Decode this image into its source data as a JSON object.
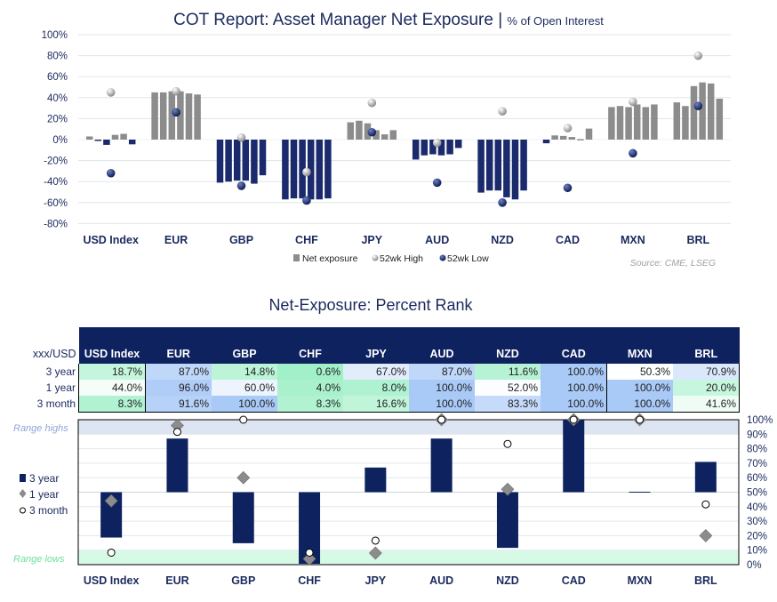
{
  "chart_data": [
    {
      "type": "bar",
      "title": "COT Report: Asset Manager Net Exposure",
      "subtitle": "% of Open Interest",
      "categories": [
        "USD Index",
        "EUR",
        "GBP",
        "CHF",
        "JPY",
        "AUD",
        "NZD",
        "CAD",
        "MXN",
        "BRL"
      ],
      "ylim": [
        -80,
        100
      ],
      "yticks": [
        "100%",
        "80%",
        "60%",
        "40%",
        "20%",
        "0%",
        "-20%",
        "-40%",
        "-60%",
        "-80%"
      ],
      "grid": true,
      "legend_position": "bottom",
      "series": [
        {
          "name": "Net exposure",
          "values": [
            [
              3,
              -0.5,
              -5,
              4.5,
              5.5,
              -4.5
            ],
            [
              45,
              45,
              46,
              46,
              44,
              43
            ],
            [
              -41,
              -40,
              -39,
              -39,
              -42,
              -34
            ],
            [
              -57,
              -56,
              -56,
              -57,
              -57,
              -56
            ],
            [
              16.5,
              18,
              15.5,
              9,
              5,
              9
            ],
            [
              -19,
              -15,
              -14,
              -15,
              -14,
              -8
            ],
            [
              -50.5,
              -48.5,
              -48.5,
              -55,
              -57,
              -48.5
            ],
            [
              -3.5,
              4,
              3.5,
              2.5,
              0.5,
              10.5
            ],
            [
              31,
              32,
              31,
              33.5,
              31,
              33.5
            ],
            [
              35.5,
              32,
              51,
              54.5,
              53.5,
              39
            ]
          ]
        },
        {
          "name": "52wk High",
          "values": [
            45,
            46,
            2,
            -31,
            35,
            -3,
            27,
            11,
            36,
            80
          ]
        },
        {
          "name": "52wk Low",
          "values": [
            -32,
            26,
            -44,
            -58,
            7,
            -41,
            -60,
            -46,
            -13,
            32
          ]
        }
      ],
      "colors": {
        "positive": "#8c8c8c",
        "negative": "#1a2a6c",
        "high": "#b0b0b0",
        "low": "#1b2a6e"
      },
      "source": "Source: CME, LSEG"
    },
    {
      "type": "bar",
      "title": "Net-Exposure: Percent Rank",
      "categories": [
        "USD Index",
        "EUR",
        "GBP",
        "CHF",
        "JPY",
        "AUD",
        "NZD",
        "CAD",
        "MXN",
        "BRL"
      ],
      "ylim": [
        0,
        100
      ],
      "yticks": [
        "100%",
        "90%",
        "80%",
        "70%",
        "60%",
        "50%",
        "40%",
        "30%",
        "20%",
        "10%",
        "0%"
      ],
      "baseline": 50,
      "grid": true,
      "legend_position": "left",
      "series": [
        {
          "name": "3 year",
          "values": [
            18.7,
            87.0,
            14.8,
            0.6,
            67.0,
            87.0,
            11.6,
            100.0,
            50.3,
            70.9
          ]
        },
        {
          "name": "1 year",
          "values": [
            44.0,
            96.0,
            60.0,
            4.0,
            8.0,
            100.0,
            52.0,
            100.0,
            100.0,
            20.0
          ]
        },
        {
          "name": "3 month",
          "values": [
            8.3,
            91.6,
            100.0,
            8.3,
            16.6,
            100.0,
            83.3,
            100.0,
            100.0,
            41.6
          ]
        }
      ],
      "annotations": [
        {
          "text": "Range highs",
          "range": [
            90,
            100
          ],
          "color": "#dde4f2"
        },
        {
          "text": "Range lows",
          "range": [
            0,
            10
          ],
          "color": "#d6fae6"
        }
      ],
      "colors": {
        "bar": "#0e2260",
        "diamond": "#8c8c8c",
        "circle": "#ffffff"
      }
    }
  ],
  "table": {
    "corner": "xxx/USD",
    "columns": [
      "USD Index",
      "EUR",
      "GBP",
      "CHF",
      "JPY",
      "AUD",
      "NZD",
      "CAD",
      "MXN",
      "BRL"
    ],
    "rows": [
      {
        "label": "3 year",
        "values": [
          "18.7%",
          "87.0%",
          "14.8%",
          "0.6%",
          "67.0%",
          "87.0%",
          "11.6%",
          "100.0%",
          "50.3%",
          "70.9%"
        ]
      },
      {
        "label": "1 year",
        "values": [
          "44.0%",
          "96.0%",
          "60.0%",
          "4.0%",
          "8.0%",
          "100.0%",
          "52.0%",
          "100.0%",
          "100.0%",
          "20.0%"
        ]
      },
      {
        "label": "3 month",
        "values": [
          "8.3%",
          "91.6%",
          "100.0%",
          "8.3%",
          "16.6%",
          "100.0%",
          "83.3%",
          "100.0%",
          "100.0%",
          "41.6%"
        ]
      }
    ],
    "scale_colors": {
      "low": "#a0f0c8",
      "mid": "#ffffff",
      "high": "#a9c9f7"
    }
  }
}
